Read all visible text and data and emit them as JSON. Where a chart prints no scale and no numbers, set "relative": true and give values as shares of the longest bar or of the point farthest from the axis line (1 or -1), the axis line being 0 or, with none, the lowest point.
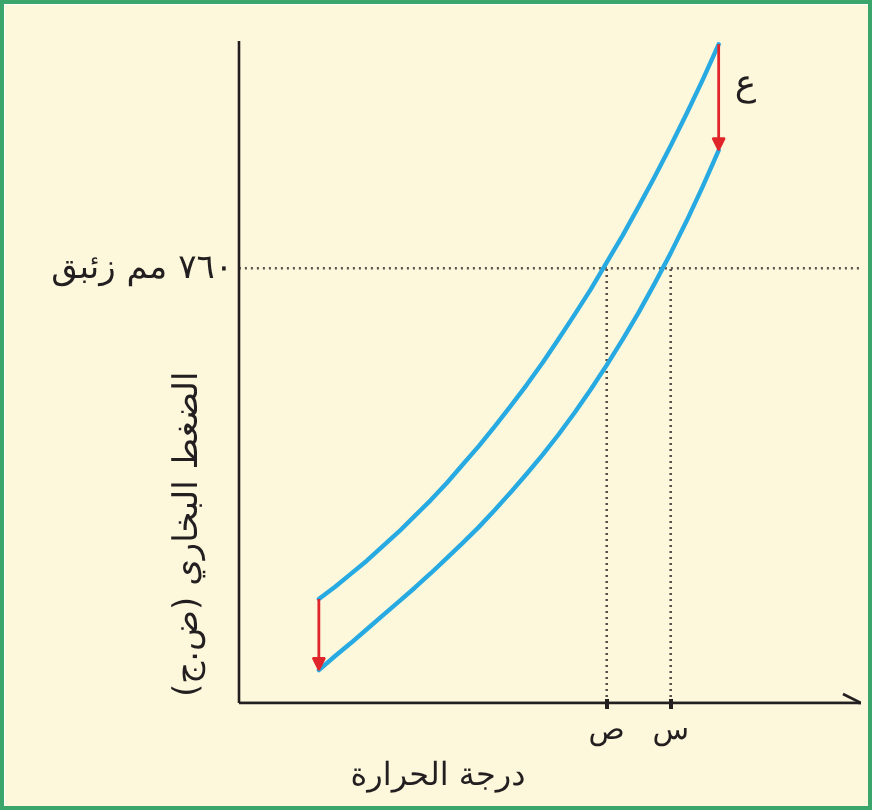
{
  "chart_data": {
    "type": "line",
    "relative": true,
    "xlabel": "درجة الحرارة",
    "ylabel": "الضغط البخاري (ض.ج)",
    "categories": [
      null,
      null,
      null,
      null,
      null,
      null,
      null,
      null,
      null,
      null,
      null,
      null,
      null,
      null,
      null,
      null,
      null,
      null,
      "ص",
      null,
      null,
      null,
      "س",
      null,
      null,
      null
    ],
    "series": [
      {
        "color": "#27a9e1",
        "values": [
          0.158,
          0.176,
          0.196,
          0.216,
          0.238,
          0.26,
          0.284,
          0.308,
          0.334,
          0.362,
          0.39,
          0.42,
          0.451,
          0.483,
          0.517,
          0.553,
          0.59,
          0.628,
          0.669,
          0.71,
          0.754,
          0.799,
          0.846,
          0.895,
          0.946,
          1.0
        ]
      },
      {
        "color": "#27a9e1",
        "values": [
          0.05,
          0.071,
          0.091,
          0.112,
          0.133,
          0.154,
          0.175,
          0.197,
          0.22,
          0.243,
          0.267,
          0.293,
          0.32,
          0.348,
          0.377,
          0.408,
          0.441,
          0.476,
          0.513,
          0.552,
          0.593,
          0.637,
          0.683,
          0.732,
          0.784,
          0.839
        ]
      }
    ],
    "ref_lines": [
      {
        "axis": "y",
        "value": 0.66,
        "label": "٧٦٠ مم زئبق",
        "color": "#5a524a",
        "line_style": "dotted"
      },
      {
        "axis": "x",
        "value": "ص",
        "color": "#5a524a",
        "line_style": "dotted"
      },
      {
        "axis": "x",
        "value": "س",
        "color": "#5a524a",
        "line_style": "dotted"
      }
    ],
    "annotations": [
      "ع"
    ]
  }
}
